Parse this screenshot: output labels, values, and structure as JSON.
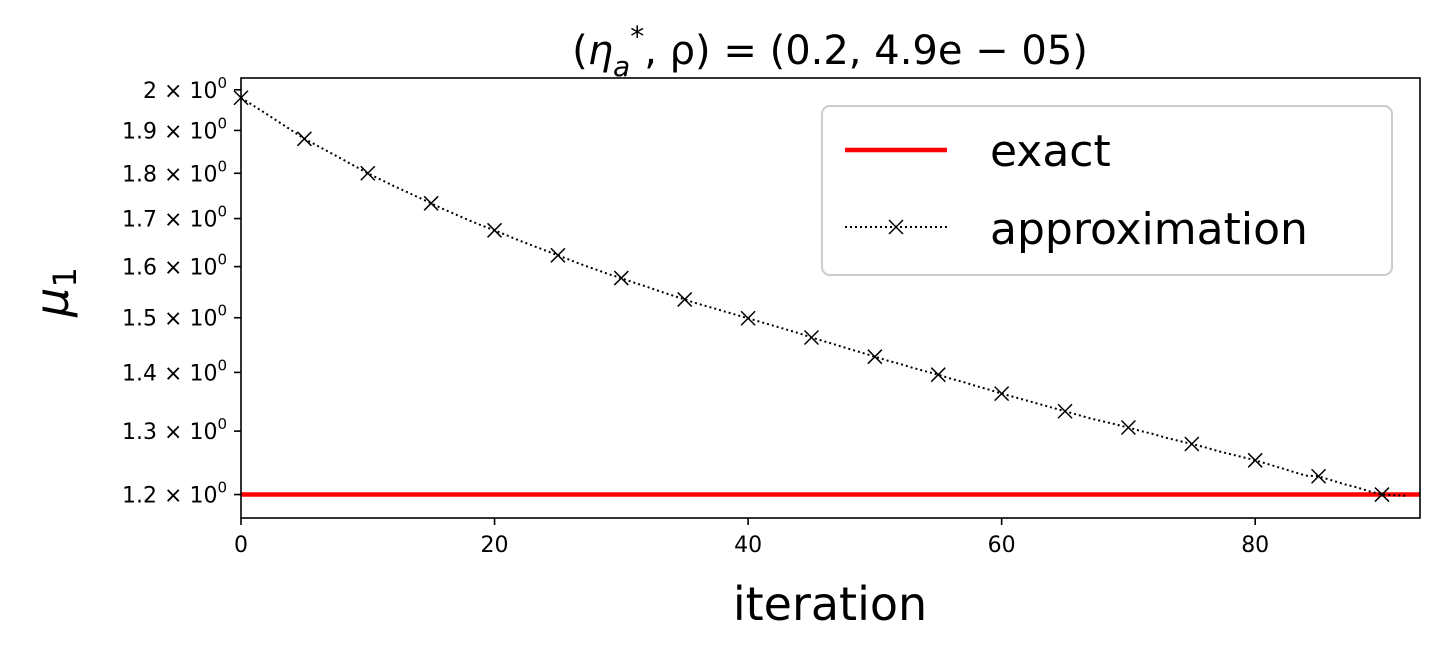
{
  "chart_data": {
    "type": "line",
    "title": "(η_a*, ρ) = (0.2, 4.9e−05)",
    "title_parts": {
      "prefix": "(",
      "eta": "η",
      "sub": "a",
      "sup": "*",
      "rest": ", ρ) = (0.2, 4.9e − 05)"
    },
    "xlabel": "iteration",
    "ylabel": "μ",
    "ylabel_sub": "1",
    "xlim": [
      0,
      93
    ],
    "ylim": [
      1.165,
      2.03
    ],
    "yscale": "log",
    "grid": false,
    "legend_position": "top-right",
    "x_ticks": [
      0,
      20,
      40,
      60,
      80
    ],
    "x_tick_labels": [
      "0",
      "20",
      "40",
      "60",
      "80"
    ],
    "y_ticks": [
      1.2,
      1.3,
      1.4,
      1.5,
      1.6,
      1.7,
      1.8,
      1.9,
      2.0
    ],
    "y_tick_mantissas": [
      "1.2",
      "1.3",
      "1.4",
      "1.5",
      "1.6",
      "1.7",
      "1.8",
      "1.9",
      "2"
    ],
    "y_tick_times": "×",
    "y_tick_base": "10",
    "y_tick_exponent": "0",
    "series": [
      {
        "name": "exact",
        "color": "#ff0000",
        "style": "solid",
        "x": [
          0,
          93
        ],
        "y": [
          1.2,
          1.2
        ]
      },
      {
        "name": "approximation",
        "color": "#000000",
        "style": "dotted",
        "marker": "x",
        "marker_every": 5,
        "x": [
          0,
          1,
          2,
          3,
          4,
          5,
          6,
          7,
          8,
          9,
          10,
          11,
          12,
          13,
          14,
          15,
          16,
          17,
          18,
          19,
          20,
          21,
          22,
          23,
          24,
          25,
          26,
          27,
          28,
          29,
          30,
          31,
          32,
          33,
          34,
          35,
          36,
          37,
          38,
          39,
          40,
          41,
          42,
          43,
          44,
          45,
          46,
          47,
          48,
          49,
          50,
          51,
          52,
          53,
          54,
          55,
          56,
          57,
          58,
          59,
          60,
          61,
          62,
          63,
          64,
          65,
          66,
          67,
          67,
          68,
          69,
          70,
          71,
          72,
          73,
          74,
          75,
          76,
          77,
          78,
          79,
          80,
          81,
          82,
          83,
          84,
          85,
          86,
          87,
          88,
          89,
          90,
          91,
          92
        ],
        "y": [
          1.98,
          1.96,
          1.94,
          1.92,
          1.9,
          1.88,
          1.864,
          1.848,
          1.832,
          1.816,
          1.8,
          1.786,
          1.772,
          1.759,
          1.746,
          1.733,
          1.72,
          1.708,
          1.696,
          1.685,
          1.675,
          1.664,
          1.653,
          1.643,
          1.633,
          1.623,
          1.613,
          1.603,
          1.594,
          1.585,
          1.577,
          1.568,
          1.56,
          1.551,
          1.543,
          1.535,
          1.527,
          1.52,
          1.513,
          1.506,
          1.499,
          1.492,
          1.485,
          1.478,
          1.471,
          1.463,
          1.456,
          1.449,
          1.442,
          1.435,
          1.428,
          1.421,
          1.415,
          1.408,
          1.402,
          1.396,
          1.389,
          1.383,
          1.376,
          1.37,
          1.363,
          1.357,
          1.351,
          1.345,
          1.339,
          1.333,
          1.327,
          1.321,
          1.321,
          1.316,
          1.311,
          1.306,
          1.3,
          1.295,
          1.289,
          1.284,
          1.279,
          1.274,
          1.268,
          1.263,
          1.258,
          1.253,
          1.247,
          1.241,
          1.235,
          1.229,
          1.228,
          1.222,
          1.216,
          1.211,
          1.205,
          1.2,
          1.199,
          1.198
        ]
      }
    ]
  }
}
